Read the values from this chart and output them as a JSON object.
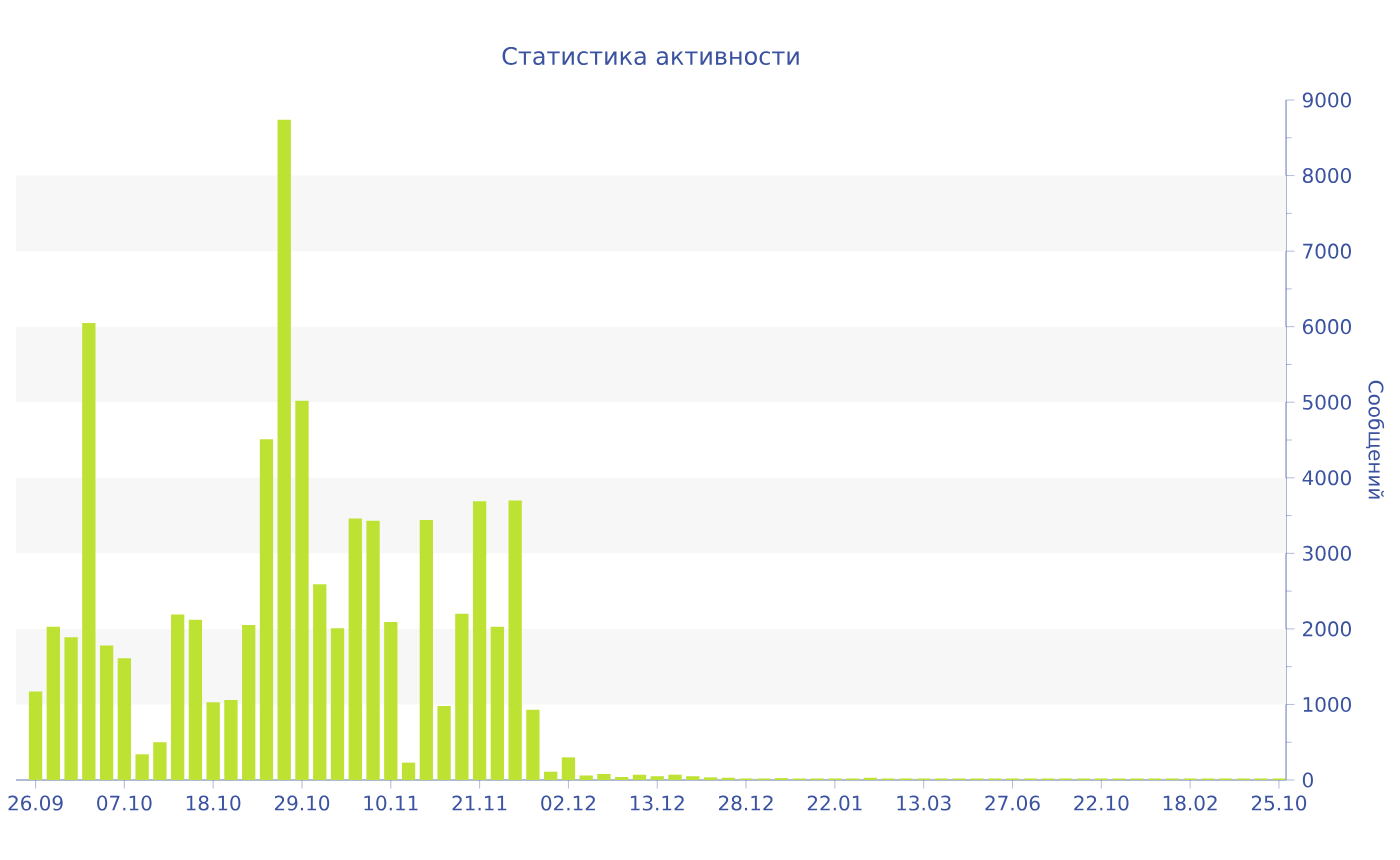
{
  "chart_data": {
    "type": "bar",
    "title": "Статистика активности",
    "ylabel": "Сообщений",
    "color": "#bde234",
    "categories": [
      "26.09",
      null,
      null,
      null,
      null,
      "07.10",
      null,
      null,
      null,
      null,
      "18.10",
      null,
      null,
      null,
      null,
      "29.10",
      null,
      null,
      null,
      null,
      "10.11",
      null,
      null,
      null,
      null,
      "21.11",
      null,
      null,
      null,
      null,
      "02.12",
      null,
      null,
      null,
      null,
      "13.12",
      null,
      null,
      null,
      null,
      "28.12",
      null,
      null,
      null,
      null,
      "22.01",
      null,
      null,
      null,
      null,
      "13.03",
      null,
      null,
      null,
      null,
      "27.06",
      null,
      null,
      null,
      null,
      "22.10",
      null,
      null,
      null,
      null,
      "18.02",
      null,
      null,
      null,
      null,
      "25.10"
    ],
    "values": [
      1170,
      2030,
      1890,
      6050,
      1780,
      1610,
      340,
      500,
      2190,
      2120,
      1030,
      1060,
      2050,
      4510,
      8740,
      5020,
      2590,
      2010,
      3460,
      3430,
      2090,
      230,
      3440,
      980,
      2200,
      3690,
      2030,
      3700,
      930,
      110,
      300,
      60,
      80,
      40,
      70,
      50,
      70,
      50,
      35,
      30,
      20,
      20,
      25,
      20,
      20,
      20,
      20,
      30,
      20,
      20,
      20,
      20,
      20,
      20,
      20,
      20,
      20,
      20,
      20,
      20,
      20,
      20,
      20,
      20,
      20,
      20,
      20,
      20,
      20,
      20,
      20
    ],
    "ylim": [
      0,
      9000
    ],
    "yticks": [
      0,
      1000,
      2000,
      3000,
      4000,
      5000,
      6000,
      7000,
      8000,
      9000
    ],
    "bands": [
      {
        "axis": "y",
        "from": 1000,
        "to": 2000,
        "color": "#f7f7f7"
      },
      {
        "axis": "y",
        "from": 3000,
        "to": 4000,
        "color": "#f7f7f7"
      },
      {
        "axis": "y",
        "from": 5000,
        "to": 6000,
        "color": "#f7f7f7"
      },
      {
        "axis": "y",
        "from": 7000,
        "to": 8000,
        "color": "#f7f7f7"
      }
    ]
  }
}
